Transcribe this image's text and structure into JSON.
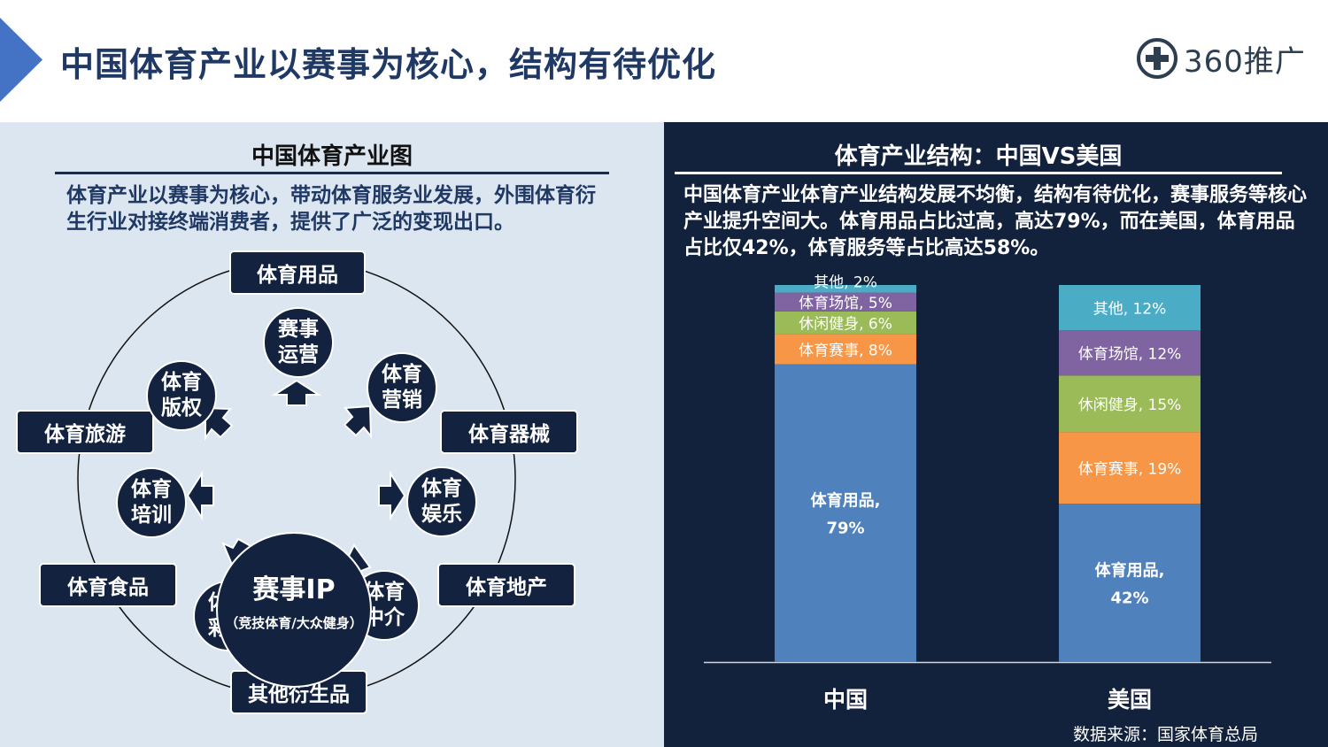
{
  "header": {
    "title": "中国体育产业以赛事为核心，结构有待优化",
    "logo_text": "360推广",
    "accent_color": "#4472c4"
  },
  "left": {
    "title": "中国体育产业图",
    "description": "体育产业以赛事为核心，带动体育服务业发展，外围体育衍生行业对接终端消费者，提供了广泛的变现出口。",
    "center": {
      "main": "赛事IP",
      "sub": "（竞技体育/大众健身）"
    },
    "inner_nodes": [
      {
        "name": "node-event-operation",
        "line1": "赛事",
        "line2": "运营"
      },
      {
        "name": "node-sports-marketing",
        "line1": "体育",
        "line2": "营销"
      },
      {
        "name": "node-sports-entertainment",
        "line1": "体育",
        "line2": "娱乐"
      },
      {
        "name": "node-sports-agency",
        "line1": "体育",
        "line2": "中介"
      },
      {
        "name": "node-sports-lottery",
        "line1": "体育",
        "line2": "彩票"
      },
      {
        "name": "node-sports-training",
        "line1": "体育",
        "line2": "培训"
      },
      {
        "name": "node-sports-copyright",
        "line1": "体育",
        "line2": "版权"
      }
    ],
    "outer_boxes": [
      {
        "name": "box-sporting-goods",
        "label": "体育用品"
      },
      {
        "name": "box-sports-equipment",
        "label": "体育器械"
      },
      {
        "name": "box-sports-real-estate",
        "label": "体育地产"
      },
      {
        "name": "box-other-derivatives",
        "label": "其他衍生品"
      },
      {
        "name": "box-sports-food",
        "label": "体育食品"
      },
      {
        "name": "box-sports-tourism",
        "label": "体育旅游"
      }
    ]
  },
  "right": {
    "title": "体育产业结构：中国VS美国",
    "description": "中国体育产业体育产业结构发展不均衡，结构有待优化，赛事服务等核心产业提升空间大。体育用品占比过高，高达79%，而在美国，体育用品占比仅42%，体育服务等占比高达58%。",
    "source": "数据来源：国家体育总局"
  },
  "chart_data": {
    "type": "bar",
    "stacked": true,
    "unit": "%",
    "categories": [
      "中国",
      "美国"
    ],
    "series": [
      {
        "name": "体育用品",
        "values": [
          79,
          42
        ],
        "color": "#4f81bd"
      },
      {
        "name": "体育赛事",
        "values": [
          8,
          19
        ],
        "color": "#f79646"
      },
      {
        "name": "休闲健身",
        "values": [
          6,
          15
        ],
        "color": "#9bbb59"
      },
      {
        "name": "体育场馆",
        "values": [
          5,
          12
        ],
        "color": "#8064a2"
      },
      {
        "name": "其他",
        "values": [
          2,
          12
        ],
        "color": "#4bacc6"
      }
    ],
    "ylim": [
      0,
      100
    ],
    "grid": false,
    "legend": "none"
  }
}
